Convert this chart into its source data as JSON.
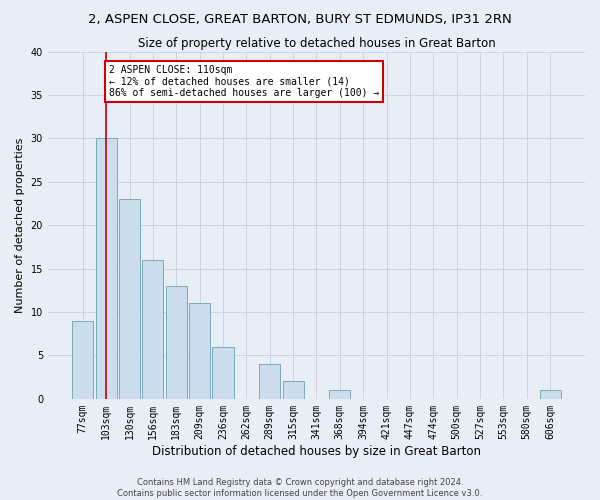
{
  "title_line1": "2, ASPEN CLOSE, GREAT BARTON, BURY ST EDMUNDS, IP31 2RN",
  "title_line2": "Size of property relative to detached houses in Great Barton",
  "xlabel": "Distribution of detached houses by size in Great Barton",
  "ylabel": "Number of detached properties",
  "footer_line1": "Contains HM Land Registry data © Crown copyright and database right 2024.",
  "footer_line2": "Contains public sector information licensed under the Open Government Licence v3.0.",
  "bar_labels": [
    "77sqm",
    "103sqm",
    "130sqm",
    "156sqm",
    "183sqm",
    "209sqm",
    "236sqm",
    "262sqm",
    "289sqm",
    "315sqm",
    "341sqm",
    "368sqm",
    "394sqm",
    "421sqm",
    "447sqm",
    "474sqm",
    "500sqm",
    "527sqm",
    "553sqm",
    "580sqm",
    "606sqm"
  ],
  "bar_values": [
    9,
    30,
    23,
    16,
    13,
    11,
    6,
    0,
    4,
    2,
    0,
    1,
    0,
    0,
    0,
    0,
    0,
    0,
    0,
    0,
    1
  ],
  "bar_color": "#ccdded",
  "bar_edgecolor": "#7aaabb",
  "grid_color": "#ccccdd",
  "vline_x": 1.0,
  "vline_color": "#cc0000",
  "annotation_text": "2 ASPEN CLOSE: 110sqm\n← 12% of detached houses are smaller (14)\n86% of semi-detached houses are larger (100) →",
  "annotation_box_edgecolor": "#cc0000",
  "annotation_box_facecolor": "#ffffff",
  "ylim": [
    0,
    40
  ],
  "yticks": [
    0,
    5,
    10,
    15,
    20,
    25,
    30,
    35,
    40
  ],
  "background_color": "#e8eef5",
  "title1_fontsize": 9.5,
  "title2_fontsize": 8.5,
  "xlabel_fontsize": 8.5,
  "ylabel_fontsize": 8,
  "tick_fontsize": 7,
  "footer_fontsize": 6,
  "annot_fontsize": 7
}
